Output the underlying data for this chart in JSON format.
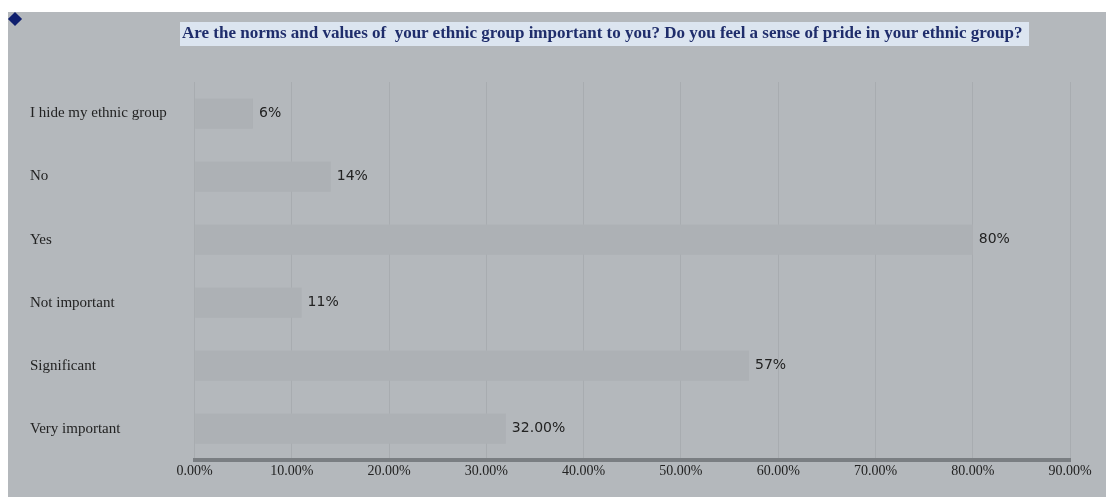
{
  "chart_data": {
    "type": "bar",
    "orientation": "horizontal",
    "title": "Are the norms and values of  your ethnic group important to you? Do you feel a sense of pride in your ethnic group?",
    "categories": [
      "I hide my ethnic group",
      "No",
      "Yes",
      "Not important",
      "Significant",
      "Very important"
    ],
    "values": [
      6,
      14,
      80,
      11,
      57,
      32
    ],
    "value_labels": [
      "6%",
      "14%",
      "80%",
      "11%",
      "57%",
      "32.00%"
    ],
    "color": "#adb1b5",
    "xlim": [
      0,
      90
    ],
    "xticks": [
      {
        "value": 0,
        "label": "0.00%"
      },
      {
        "value": 10,
        "label": "10.00%"
      },
      {
        "value": 20,
        "label": "20.00%"
      },
      {
        "value": 30,
        "label": "30.00%"
      },
      {
        "value": 40,
        "label": "40.00%"
      },
      {
        "value": 50,
        "label": "50.00%"
      },
      {
        "value": 60,
        "label": "60.00%"
      },
      {
        "value": 70,
        "label": "70.00%"
      },
      {
        "value": 80,
        "label": "80.00%"
      },
      {
        "value": 90,
        "label": "90.00%"
      }
    ],
    "grid": "x",
    "legend": false
  }
}
